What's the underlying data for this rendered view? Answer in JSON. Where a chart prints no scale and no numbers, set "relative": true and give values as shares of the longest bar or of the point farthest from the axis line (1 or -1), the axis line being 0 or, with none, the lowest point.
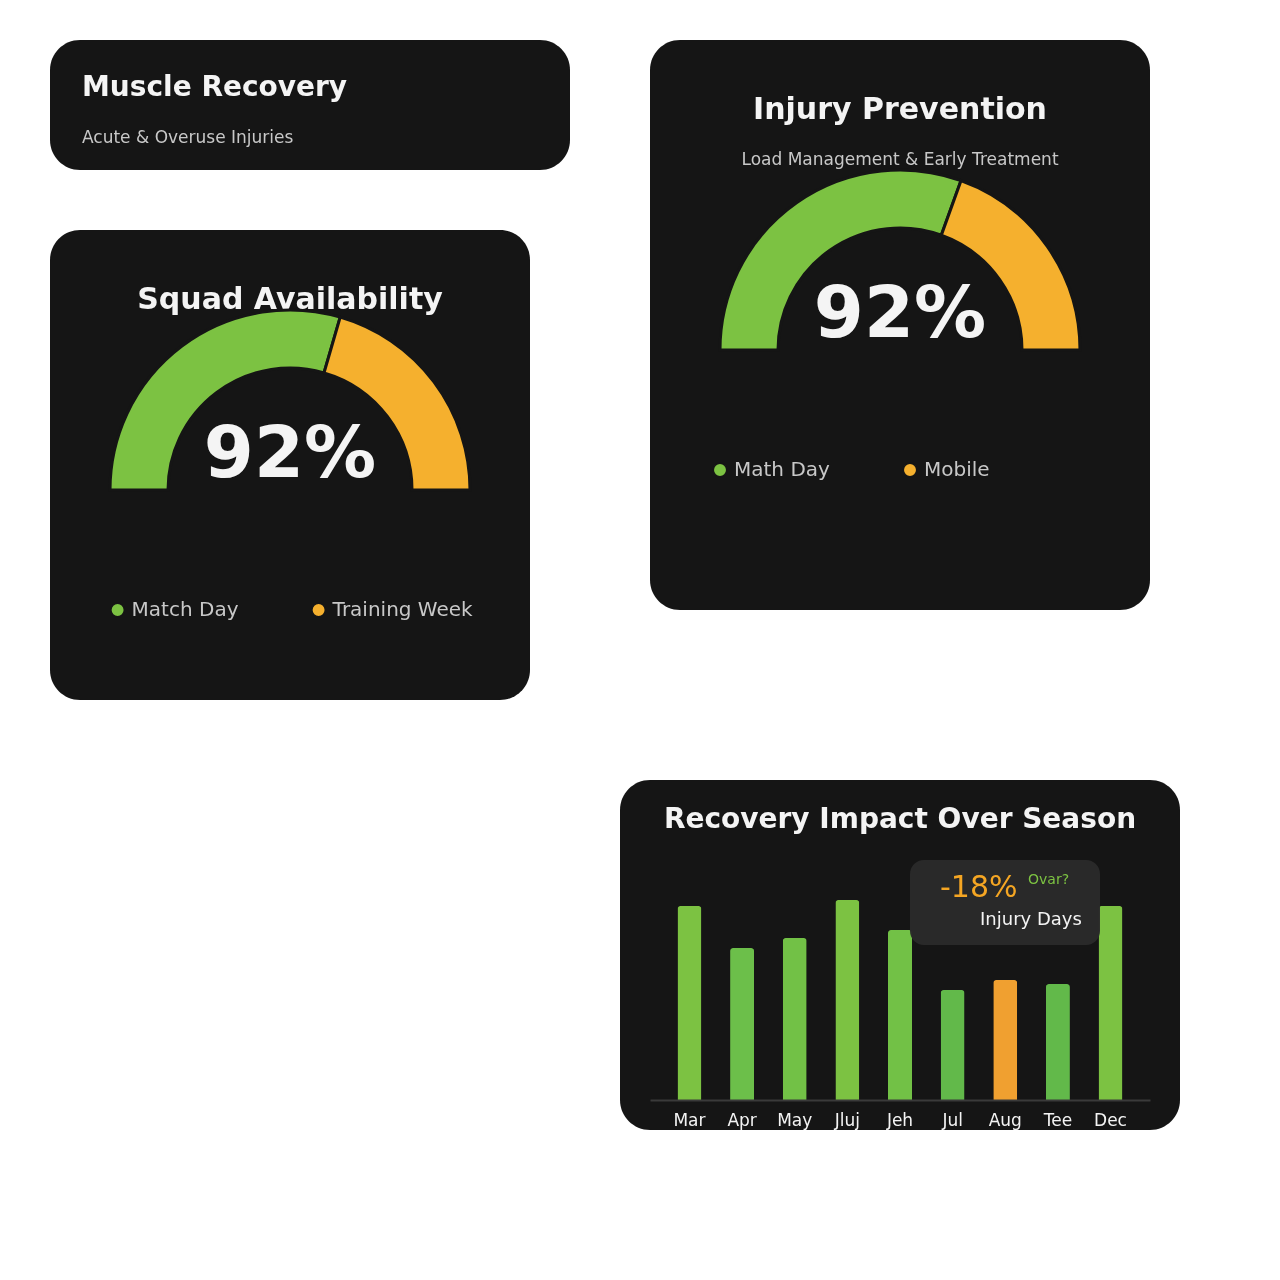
{
  "chart_data": [
    {
      "type": "other",
      "title": "Muscle Recovery",
      "subtitle": "Acute & Overuse Injuries"
    },
    {
      "type": "donut",
      "title": "Injury Prevention",
      "subtitle": "Load Management & Early Treatment",
      "categories": [
        "Math Day",
        "Mobile"
      ],
      "values": [
        61,
        39
      ],
      "colors": [
        "#7cc242",
        "#f5b02e"
      ],
      "annotations": [
        "92%"
      ],
      "legend": "bottom"
    },
    {
      "type": "donut",
      "title": "Squad Availability",
      "categories": [
        "Match Day",
        "Training Week"
      ],
      "values": [
        59,
        41
      ],
      "colors": [
        "#7cc242",
        "#f5b02e"
      ],
      "annotations": [
        "92%"
      ],
      "legend": "bottom"
    },
    {
      "type": "bar",
      "title": "Recovery Impact Over Season",
      "relative": true,
      "categories": [
        "Mar",
        "Apr",
        "May",
        "Jluj",
        "Jeh",
        "Jul",
        "Aug",
        "Tee",
        "Dec"
      ],
      "values": [
        0.97,
        0.76,
        0.81,
        1,
        0.85,
        0.55,
        0.6,
        0.58,
        0.97
      ],
      "colors": [
        "#7cc242",
        "#6cbf4a",
        "#72c146",
        "#7cc242",
        "#72c146",
        "#62b94a",
        "#f0a030",
        "#62b94a",
        "#7cc242"
      ],
      "annotations": [
        "-18%",
        "Ovar?",
        "Injury Days"
      ]
    }
  ]
}
